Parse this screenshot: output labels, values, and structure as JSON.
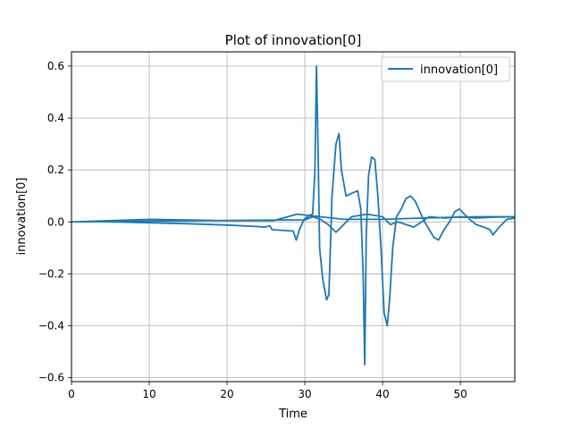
{
  "chart_data": {
    "type": "line",
    "title": "Plot of innovation[0]",
    "xlabel": "Time",
    "ylabel": "innovation[0]",
    "xlim": [
      0,
      57
    ],
    "ylim": [
      -0.615,
      0.655
    ],
    "xticks": [
      0,
      10,
      20,
      30,
      40,
      50
    ],
    "xtick_labels": [
      "0",
      "10",
      "20",
      "30",
      "40",
      "50"
    ],
    "yticks": [
      -0.6,
      -0.4,
      -0.2,
      0.0,
      0.2,
      0.4,
      0.6
    ],
    "ytick_labels": [
      "−0.6",
      "−0.4",
      "−0.2",
      "0.0",
      "0.2",
      "0.4",
      "0.6"
    ],
    "grid": true,
    "legend": {
      "placement": "top-right",
      "entries": [
        "innovation[0]"
      ]
    },
    "colors": {
      "series": "#1f77b4",
      "grid": "#b0b0b0"
    },
    "series": [
      {
        "name": "innovation[0]",
        "x": [
          0,
          3,
          8,
          15,
          20,
          24,
          24.8,
          25.5,
          25.8,
          28.5,
          28.9,
          29.3,
          29.9,
          30.6,
          31.0,
          31.3,
          31.5,
          31.7,
          31.9,
          32.3,
          32.8,
          33.1,
          33.5,
          34.0,
          34.4,
          34.7,
          35.3,
          36.0,
          36.8,
          37.2,
          37.5,
          37.7,
          37.9,
          38.2,
          38.6,
          39.0,
          39.4,
          39.8,
          40.2,
          40.6,
          40.9,
          41.3,
          41.8,
          42.4,
          43.0,
          43.6,
          44.2,
          44.8,
          45.4,
          46.0,
          46.6,
          47.2,
          47.9,
          48.6,
          49.3,
          49.9,
          50.5,
          51.2,
          52.0,
          53.0,
          53.8,
          54.2,
          55.0,
          56.0,
          57.0,
          57.0,
          52,
          45,
          40,
          35,
          32,
          29,
          26,
          20,
          10,
          5,
          0,
          0,
          10,
          20,
          30,
          31,
          32,
          33,
          34,
          36,
          38,
          40,
          41,
          42,
          44,
          46,
          48,
          50,
          52,
          54,
          57
        ],
        "y": [
          0.0,
          0.002,
          -0.002,
          -0.007,
          -0.012,
          -0.018,
          -0.02,
          -0.015,
          -0.03,
          -0.035,
          -0.07,
          -0.03,
          0.01,
          0.025,
          0.03,
          0.2,
          0.6,
          0.3,
          -0.1,
          -0.22,
          -0.3,
          -0.28,
          0.1,
          0.3,
          0.34,
          0.2,
          0.1,
          0.11,
          0.12,
          0.05,
          -0.2,
          -0.55,
          -0.05,
          0.18,
          0.25,
          0.24,
          0.1,
          -0.1,
          -0.35,
          -0.4,
          -0.3,
          -0.1,
          0.02,
          0.05,
          0.09,
          0.1,
          0.08,
          0.04,
          0.0,
          -0.03,
          -0.06,
          -0.07,
          -0.03,
          0.0,
          0.04,
          0.05,
          0.03,
          0.01,
          -0.01,
          -0.02,
          -0.03,
          -0.05,
          -0.02,
          0.01,
          0.015,
          0.02,
          0.02,
          0.015,
          0.01,
          0.01,
          0.02,
          0.03,
          0.005,
          0.005,
          0.01,
          0.005,
          0.0,
          0.0,
          0.003,
          0.006,
          0.008,
          0.02,
          0.01,
          -0.01,
          -0.04,
          0.02,
          0.03,
          0.02,
          -0.01,
          0.0,
          -0.02,
          0.02,
          0.015,
          0.02,
          0.015,
          0.018,
          0.02
        ]
      }
    ]
  }
}
